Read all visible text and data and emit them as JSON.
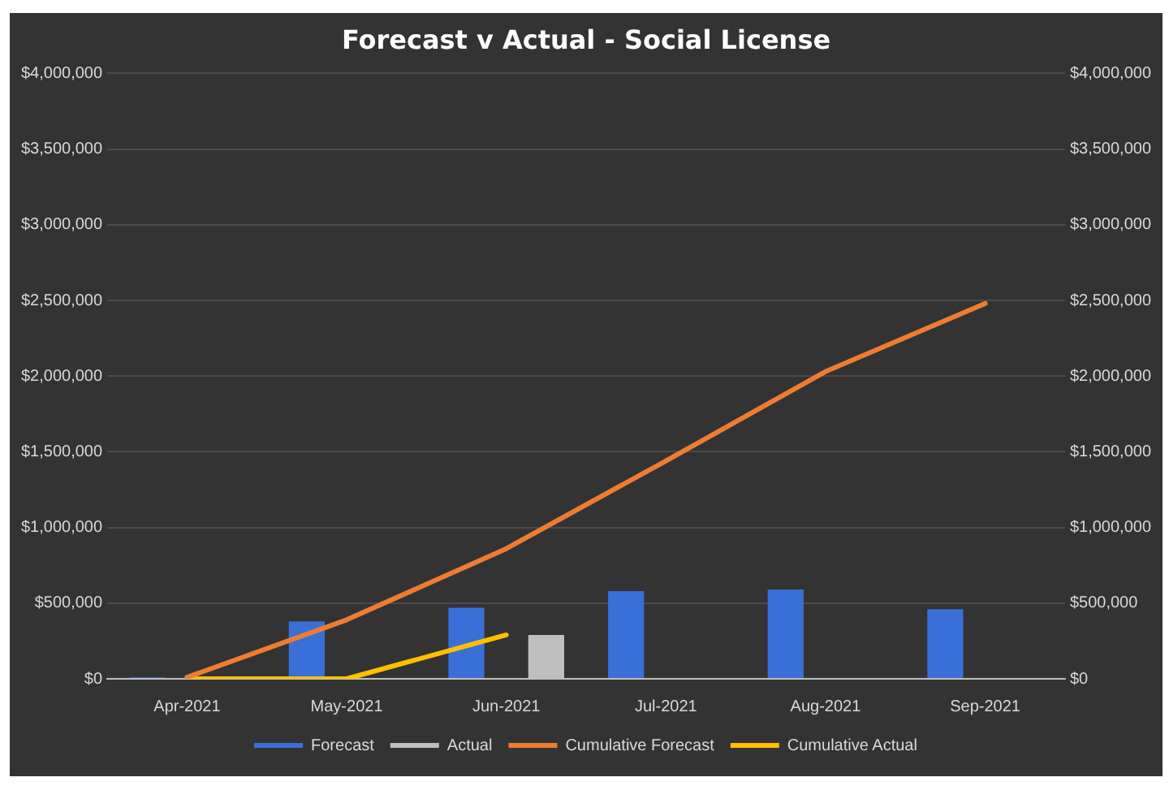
{
  "chart_data": {
    "type": "bar",
    "title": "Forecast v Actual - Social License",
    "categories": [
      "Apr-2021",
      "May-2021",
      "Jun-2021",
      "Jul-2021",
      "Aug-2021",
      "Sep-2021"
    ],
    "series": [
      {
        "name": "Forecast",
        "color": "#3a6fd8",
        "values": [
          10000,
          380000,
          470000,
          580000,
          590000,
          460000
        ]
      },
      {
        "name": "Actual",
        "color": "#bfbfbf",
        "values": [
          null,
          null,
          290000,
          null,
          null,
          null
        ]
      },
      {
        "name": "Cumulative Forecast",
        "type": "line",
        "color": "#ed7d31",
        "values": [
          10000,
          390000,
          860000,
          1440000,
          2030000,
          2480000
        ]
      },
      {
        "name": "Cumulative Actual",
        "type": "line",
        "color": "#ffc000",
        "values": [
          0,
          0,
          290000,
          null,
          null,
          null
        ]
      }
    ],
    "ylim": [
      0,
      4000000
    ],
    "yticks": [
      {
        "value": 0,
        "label": "$0"
      },
      {
        "value": 500000,
        "label": "$500,000"
      },
      {
        "value": 1000000,
        "label": "$1,000,000"
      },
      {
        "value": 1500000,
        "label": "$1,500,000"
      },
      {
        "value": 2000000,
        "label": "$2,000,000"
      },
      {
        "value": 2500000,
        "label": "$2,500,000"
      },
      {
        "value": 3000000,
        "label": "$3,000,000"
      },
      {
        "value": 3500000,
        "label": "$3,500,000"
      },
      {
        "value": 4000000,
        "label": "$4,000,000"
      }
    ],
    "y2lim": [
      0,
      4000000
    ],
    "y2ticks": [
      {
        "value": 0,
        "label": "$0"
      },
      {
        "value": 500000,
        "label": "$500,000"
      },
      {
        "value": 1000000,
        "label": "$1,000,000"
      },
      {
        "value": 1500000,
        "label": "$1,500,000"
      },
      {
        "value": 2000000,
        "label": "$2,000,000"
      },
      {
        "value": 2500000,
        "label": "$2,500,000"
      },
      {
        "value": 3000000,
        "label": "$3,000,000"
      },
      {
        "value": 3500000,
        "label": "$3,500,000"
      },
      {
        "value": 4000000,
        "label": "$4,000,000"
      }
    ],
    "grid": "y",
    "legend": "bottom",
    "marker": "none"
  }
}
